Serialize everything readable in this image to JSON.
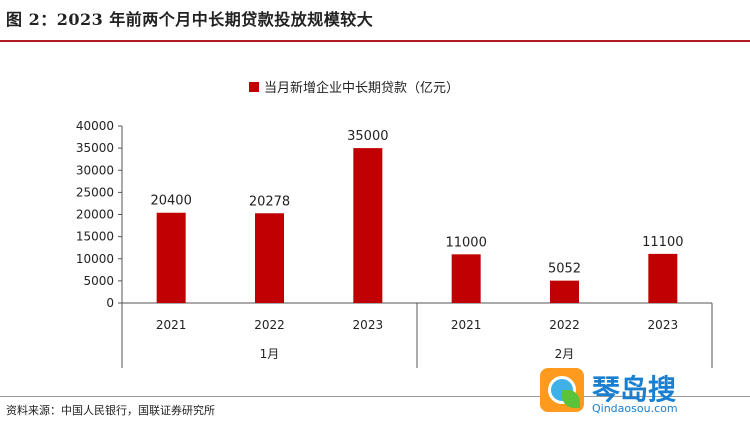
{
  "header": {
    "title": "图 2：2023 年前两个月中长期贷款投放规模较大"
  },
  "footer": {
    "source": "资料来源：中国人民银行，国联证券研究所"
  },
  "watermark": {
    "name": "琴岛搜",
    "url": "Qindaosou.com"
  },
  "colors": {
    "bar": "#c00000",
    "accent_rule": "#b01c24"
  },
  "chart_data": {
    "type": "bar",
    "legend": {
      "label": "当月新增企业中长期贷款（亿元）",
      "position": "top-center"
    },
    "groups": [
      {
        "label": "1月",
        "categories": [
          "2021",
          "2022",
          "2023"
        ],
        "values": [
          20400,
          20278,
          35000
        ]
      },
      {
        "label": "2月",
        "categories": [
          "2021",
          "2022",
          "2023"
        ],
        "values": [
          11000,
          5052,
          11100
        ]
      }
    ],
    "yticks": [
      "0",
      "5000",
      "10000",
      "15000",
      "20000",
      "25000",
      "30000",
      "35000",
      "40000"
    ],
    "ylim": [
      0,
      40000
    ],
    "grid": false
  }
}
